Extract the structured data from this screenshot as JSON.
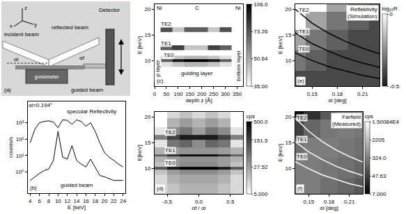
{
  "panel_a": {
    "labels": {
      "z": "z",
      "x": "x",
      "y": "y",
      "incident_beam": "incident beam",
      "reflected_beam": "reflected beam",
      "detector": "Detector",
      "goniometer": "goniometer",
      "guided_beam": "guided beam",
      "alpha_i": "αi",
      "alpha_f": "αf",
      "label": "(a)"
    }
  },
  "chart_data": [
    {
      "type": "line",
      "label": "(b)",
      "xlabel": "E [keV]",
      "ylabel": "counts/s",
      "log": "y",
      "x": [
        4,
        5,
        6,
        7,
        8,
        9,
        10,
        11,
        12,
        13,
        14,
        15,
        16,
        17,
        18,
        19,
        20,
        21,
        22,
        23,
        24
      ],
      "series": [
        {
          "color": "#000000",
          "values": [
            60,
            400,
            1000,
            1200,
            1300,
            1100,
            500,
            1500,
            1400,
            800,
            1500,
            1200,
            600,
            1000,
            300,
            60,
            15,
            8,
            5,
            3,
            2
          ]
        },
        {
          "color": "#000000",
          "values": [
            0.3,
            0.5,
            0.8,
            1.2,
            1.5,
            5,
            300,
            8,
            6,
            40,
            5,
            3,
            2,
            6,
            2,
            0.6,
            0.5,
            0.4,
            0.3,
            0.3,
            0.3
          ]
        }
      ],
      "xlim": [
        3.5,
        24.5
      ],
      "xticks": [
        4,
        6,
        8,
        10,
        12,
        14,
        16,
        18,
        20,
        22,
        24
      ],
      "ylim": [
        0.05,
        20000
      ],
      "yticks": [
        {
          "value": 1,
          "label": "10⁰"
        },
        {
          "value": 10,
          "label": "10¹"
        },
        {
          "value": 100,
          "label": "10²"
        },
        {
          "value": 1000,
          "label": "10³"
        }
      ],
      "annotations": [
        {
          "text": "αi=0.194°",
          "x": 6.2,
          "y": 12000
        },
        {
          "text": "specular Reflectivity",
          "x": 17.2,
          "y": 5000
        },
        {
          "text": "guided beam",
          "x": 14,
          "y": 0.15
        }
      ]
    },
    {
      "type": "heatmap",
      "label": "(c)",
      "xlabel": "depth z [Å]",
      "ylabel": "E [keV]",
      "log": true,
      "x": [
        0,
        50,
        100,
        150,
        200,
        250,
        300,
        350
      ],
      "y": [
        6,
        8,
        9.5,
        10,
        10.5,
        11.5,
        12.5,
        13.5,
        15,
        16,
        17,
        19,
        20.5
      ],
      "z": [
        [
          35,
          35,
          35,
          35,
          35,
          35,
          35,
          35
        ],
        [
          35,
          35,
          35,
          35,
          35,
          35,
          35,
          35
        ],
        [
          35,
          40,
          45,
          48,
          48,
          45,
          40,
          35
        ],
        [
          35,
          70,
          95,
          106,
          106,
          95,
          70,
          35
        ],
        [
          35,
          40,
          45,
          48,
          48,
          45,
          40,
          35
        ],
        [
          35,
          35,
          35,
          35,
          35,
          35,
          35,
          35
        ],
        [
          35,
          70,
          80,
          45,
          45,
          80,
          70,
          35
        ],
        [
          35,
          35,
          35,
          35,
          35,
          35,
          35,
          35
        ],
        [
          35,
          35,
          35,
          35,
          35,
          35,
          35,
          35
        ],
        [
          35,
          75,
          45,
          70,
          70,
          45,
          75,
          35
        ],
        [
          35,
          35,
          35,
          35,
          35,
          35,
          35,
          35
        ],
        [
          35,
          35,
          35,
          35,
          35,
          35,
          35,
          35
        ],
        [
          35,
          35,
          35,
          35,
          35,
          35,
          35,
          35
        ]
      ],
      "colors": [
        "#ffffff",
        "#000000"
      ],
      "xlim": [
        0,
        375
      ],
      "xticks": [
        0,
        50,
        100,
        150,
        200,
        250,
        300,
        350
      ],
      "ylim": [
        5,
        21
      ],
      "yticks": [
        10,
        15,
        20
      ],
      "colorbar": {
        "range": [
          35,
          106
        ],
        "ticks": [
          {
            "value": 35,
            "label": "35.00"
          },
          50.64,
          73.26,
          {
            "value": 106,
            "label": "106.0"
          }
        ]
      },
      "annotations": [
        {
          "text": "Ni",
          "x": 20,
          "y": 20.2
        },
        {
          "text": "C",
          "x": 180,
          "y": 20.2
        },
        {
          "text": "Ni",
          "x": 355,
          "y": 20.2
        },
        {
          "text": "top layer",
          "x": 15,
          "y": 8
        },
        {
          "text": "guiding layer",
          "x": 180,
          "y": 7.5
        },
        {
          "text": "bottom layer",
          "x": 355,
          "y": 9
        },
        {
          "text": "TE0",
          "x": 60,
          "y": 11
        },
        {
          "text": "TE1",
          "x": 50,
          "y": 13.4
        },
        {
          "text": "TE2",
          "x": 50,
          "y": 17.2
        }
      ]
    },
    {
      "type": "heatmap",
      "label": "(d)",
      "xlabel": "αf / αi",
      "ylabel": "E[keV]",
      "log": true,
      "x": [
        -0.6,
        -0.4,
        -0.2,
        0,
        0.2,
        0.4,
        0.6
      ],
      "y": [
        6,
        8,
        9.5,
        10,
        10.5,
        12,
        12.5,
        13,
        15,
        16,
        17,
        19,
        20.5
      ],
      "z": [
        [
          10,
          15,
          20,
          20,
          20,
          15,
          10
        ],
        [
          10,
          20,
          25,
          25,
          25,
          20,
          10
        ],
        [
          15,
          30,
          40,
          40,
          40,
          30,
          15
        ],
        [
          100,
          300,
          500,
          500,
          500,
          300,
          100
        ],
        [
          15,
          30,
          40,
          40,
          40,
          30,
          15
        ],
        [
          20,
          30,
          35,
          35,
          35,
          30,
          20
        ],
        [
          80,
          200,
          400,
          400,
          400,
          200,
          80
        ],
        [
          20,
          30,
          35,
          35,
          35,
          30,
          20
        ],
        [
          8,
          60,
          80,
          40,
          80,
          60,
          8
        ],
        [
          50,
          150,
          300,
          300,
          300,
          150,
          50
        ],
        [
          8,
          40,
          60,
          30,
          60,
          40,
          8
        ],
        [
          5,
          20,
          30,
          20,
          30,
          20,
          5
        ],
        [
          5,
          10,
          15,
          10,
          15,
          10,
          5
        ]
      ],
      "colors": [
        "#ffffff",
        "#000000"
      ],
      "xlim": [
        -0.7,
        0.7
      ],
      "xticks": [
        -0.5,
        {
          "value": 0,
          "label": "0.0"
        },
        0.5
      ],
      "ylim": [
        5,
        21
      ],
      "yticks": [
        10,
        15,
        20
      ],
      "colorbar": {
        "title": "cps",
        "range": [
          5,
          500
        ],
        "ticks": [
          {
            "value": 5,
            "label": "5.000"
          },
          27.52,
          151.5,
          {
            "value": 500,
            "label": "500.0"
          }
        ]
      },
      "annotations": [
        {
          "text": "TE0",
          "x": -0.45,
          "y": 11
        },
        {
          "text": "TE1",
          "x": -0.45,
          "y": 13.5
        },
        {
          "text": "TE2",
          "x": -0.45,
          "y": 17
        }
      ]
    },
    {
      "type": "heatmap",
      "label": "(e)",
      "title": "Reflektivity (Simulation)",
      "xlabel": "αi [deg]",
      "ylabel": "E [keV]",
      "x": [
        0.13,
        0.155,
        0.18,
        0.205,
        0.23
      ],
      "y": [
        6,
        10,
        14,
        18,
        21
      ],
      "z": [
        [
          -0.4,
          -0.4,
          -0.4,
          -0.4,
          -0.4
        ],
        [
          -0.3,
          -0.35,
          -0.4,
          -0.4,
          -0.4
        ],
        [
          -0.2,
          -0.3,
          -0.35,
          -0.4,
          -0.4
        ],
        [
          0,
          -0.2,
          -0.3,
          -0.35,
          -0.4
        ],
        [
          0,
          0,
          -0.2,
          -0.3,
          -0.35
        ]
      ],
      "colors": [
        "#1a1a1a",
        "#ffffff"
      ],
      "xlim": [
        0.13,
        0.23
      ],
      "xticks": [
        0.15,
        0.18,
        0.21
      ],
      "ylim": [
        5,
        21
      ],
      "yticks": [
        10,
        15,
        20
      ],
      "colorbar": {
        "title": "log₁₀R",
        "range": [
          -0.5,
          0
        ],
        "ticks": [
          -0.5,
          0
        ]
      },
      "series": [
        {
          "color": "#000000",
          "x": [
            0.13,
            0.15,
            0.17,
            0.19,
            0.21,
            0.23
          ],
          "values": [
            11.5,
            10.0,
            8.8,
            7.9,
            7.1,
            6.5
          ]
        },
        {
          "color": "#000000",
          "x": [
            0.13,
            0.15,
            0.17,
            0.19,
            0.21,
            0.23
          ],
          "values": [
            15.4,
            13.3,
            11.8,
            10.5,
            9.5,
            8.7
          ]
        },
        {
          "color": "#000000",
          "x": [
            0.13,
            0.15,
            0.17,
            0.19,
            0.21,
            0.23
          ],
          "values": [
            20.0,
            17.3,
            15.3,
            13.7,
            12.4,
            11.3
          ]
        }
      ],
      "annotations": [
        {
          "text": "TE0",
          "x": 0.14,
          "y": 12.3
        },
        {
          "text": "TE1",
          "x": 0.14,
          "y": 15.7
        },
        {
          "text": "TE2",
          "x": 0.14,
          "y": 19.9
        }
      ]
    },
    {
      "type": "heatmap",
      "label": "(f)",
      "title": "Farfield (Measured)",
      "xlabel": "αi [deg]",
      "ylabel": "E [keV]",
      "log": true,
      "x": [
        0.13,
        0.155,
        0.18,
        0.205,
        0.23
      ],
      "y": [
        6,
        10,
        14,
        18,
        21
      ],
      "z": [
        [
          300,
          300,
          200,
          150,
          100
        ],
        [
          300,
          300,
          250,
          200,
          150
        ],
        [
          200,
          300,
          300,
          250,
          200
        ],
        [
          50,
          150,
          250,
          300,
          250
        ],
        [
          10,
          30,
          100,
          200,
          250
        ]
      ],
      "colors": [
        "#000000",
        "#ffffff"
      ],
      "xlim": [
        0.13,
        0.23
      ],
      "xticks": [
        0.15,
        0.18,
        0.21
      ],
      "ylim": [
        5,
        21
      ],
      "yticks": [
        10,
        15,
        20
      ],
      "colorbar": {
        "title": "cps",
        "range": [
          7,
          15008.4
        ],
        "ticks": [
          {
            "value": 7,
            "label": "7.000"
          },
          47.63,
          {
            "value": 324,
            "label": "324.0"
          },
          2205,
          {
            "value": 15008.4,
            "label": "1.50084E4"
          }
        ]
      },
      "series": [
        {
          "color": "#ffffff",
          "x": [
            0.13,
            0.15,
            0.17,
            0.19,
            0.21,
            0.23
          ],
          "values": [
            11.3,
            9.9,
            8.7,
            7.8,
            7.0,
            6.4
          ]
        },
        {
          "color": "#ffffff",
          "x": [
            0.13,
            0.15,
            0.17,
            0.19,
            0.21,
            0.23
          ],
          "values": [
            15.2,
            13.2,
            11.7,
            10.4,
            9.4,
            8.6
          ]
        },
        {
          "color": "#ffffff",
          "x": [
            0.13,
            0.15,
            0.17,
            0.19,
            0.21,
            0.23
          ],
          "values": [
            19.8,
            17.2,
            15.2,
            13.6,
            12.3,
            11.2
          ]
        }
      ],
      "annotations": [
        {
          "text": "TE0",
          "x": 0.14,
          "y": 12.3
        },
        {
          "text": "TE1",
          "x": 0.14,
          "y": 15.6
        },
        {
          "text": "TE2",
          "x": 0.14,
          "y": 19.8
        }
      ]
    }
  ]
}
